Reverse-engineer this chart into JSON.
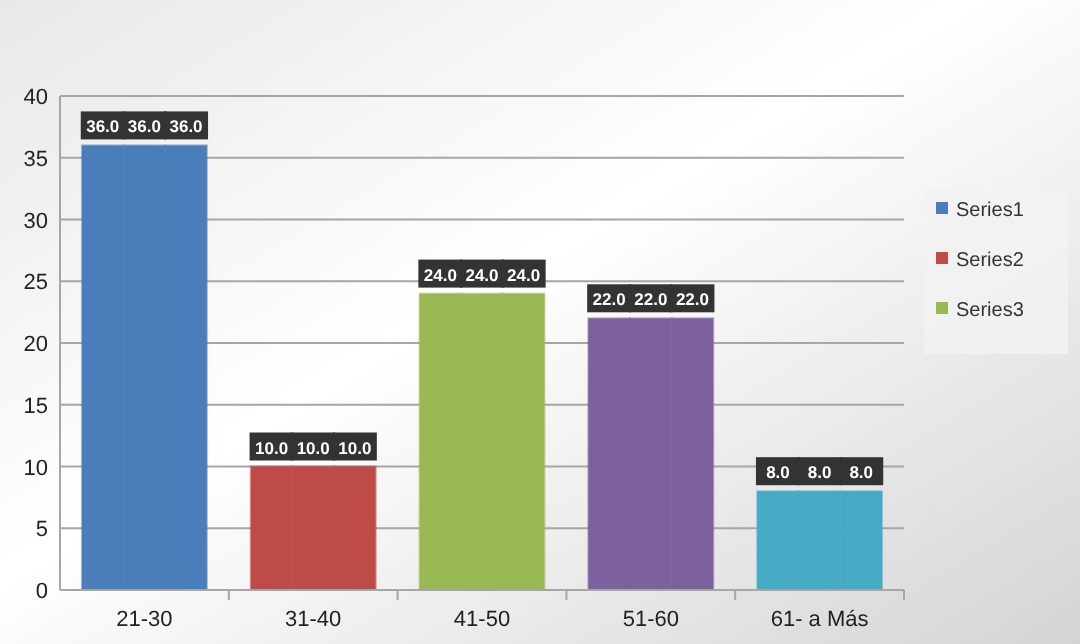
{
  "chart_data": {
    "type": "bar",
    "categories": [
      "21-30",
      "31-40",
      "41-50",
      "51-60",
      "61- a Más"
    ],
    "series": [
      {
        "name": "Series1",
        "color": "#4a7ebb",
        "colors": [
          "#4a7ebb",
          "#be4b48",
          "#98b954",
          "#7d60a0",
          "#46aac5"
        ],
        "values": [
          36,
          10,
          24,
          22,
          8
        ],
        "value_labels": [
          "36.0",
          "10.0",
          "24.0",
          "22.0",
          "8.0"
        ]
      },
      {
        "name": "Series2",
        "color": "#be4b48",
        "colors": [
          "#4a7ebb",
          "#be4b48",
          "#98b954",
          "#7d60a0",
          "#46aac5"
        ],
        "values": [
          36,
          10,
          24,
          22,
          8
        ],
        "value_labels": [
          "36.0",
          "10.0",
          "24.0",
          "22.0",
          "8.0"
        ]
      },
      {
        "name": "Series3",
        "color": "#98b954",
        "colors": [
          "#4a7ebb",
          "#be4b48",
          "#98b954",
          "#7d60a0",
          "#46aac5"
        ],
        "values": [
          36,
          10,
          24,
          22,
          8
        ],
        "value_labels": [
          "36.0",
          "10.0",
          "24.0",
          "22.0",
          "8.0"
        ]
      }
    ],
    "ylim": [
      0,
      40
    ],
    "yticks": [
      0,
      5,
      10,
      15,
      20,
      25,
      30,
      35,
      40
    ],
    "grid": "y",
    "legend": "right"
  }
}
